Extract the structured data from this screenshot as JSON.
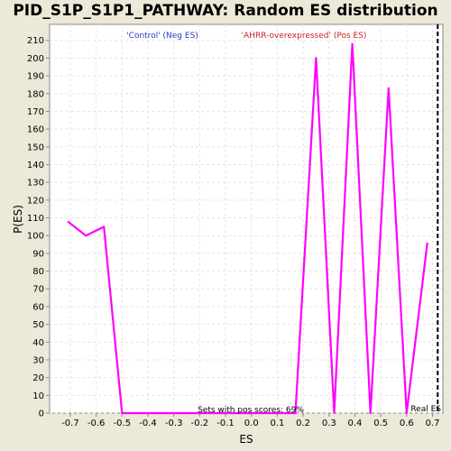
{
  "chart_data": {
    "type": "line",
    "title": "PID_S1P_S1P1_PATHWAY: Random ES distribution",
    "xlabel": "ES",
    "ylabel": "P(ES)",
    "xlim": [
      -0.78,
      0.74
    ],
    "ylim": [
      0,
      219
    ],
    "x_ticks": [
      -0.7,
      -0.6,
      -0.5,
      -0.4,
      -0.3,
      -0.2,
      -0.1,
      0.0,
      0.1,
      0.2,
      0.3,
      0.4,
      0.5,
      0.6,
      0.7
    ],
    "x_tick_labels": [
      "-0.7",
      "-0.6",
      "-0.5",
      "-0.4",
      "-0.3",
      "-0.2",
      "-0.1",
      "0.0",
      "0.1",
      "0.2",
      "0.3",
      "0.4",
      "0.5",
      "0.6",
      "0.7"
    ],
    "y_ticks": [
      0,
      10,
      20,
      30,
      40,
      50,
      60,
      70,
      80,
      90,
      100,
      110,
      120,
      130,
      140,
      150,
      160,
      170,
      180,
      190,
      200,
      210
    ],
    "y_tick_labels": [
      "0",
      "10",
      "20",
      "30",
      "40",
      "50",
      "60",
      "70",
      "80",
      "90",
      "100",
      "110",
      "120",
      "130",
      "140",
      "150",
      "160",
      "170",
      "180",
      "190",
      "200",
      "210"
    ],
    "grid": true,
    "series": [
      {
        "color": "#ff00ff",
        "x": [
          -0.71,
          -0.64,
          -0.57,
          -0.5,
          -0.43,
          -0.36,
          -0.29,
          -0.22,
          -0.15,
          -0.08,
          -0.01,
          0.06,
          0.13,
          0.17,
          0.25,
          0.32,
          0.39,
          0.46,
          0.53,
          0.6,
          0.68
        ],
        "y": [
          108,
          100,
          105,
          0,
          0,
          0,
          0,
          0,
          0,
          0,
          0,
          0,
          0,
          0,
          200,
          0,
          208,
          0,
          183,
          0,
          96
        ]
      }
    ],
    "real_es": {
      "x": 0.72,
      "label": "Real ES",
      "color": "#000000"
    },
    "annotations": {
      "neg_label": "'Control' (Neg ES)",
      "neg_color": "#3333cc",
      "pos_label": "'AHRR-overexpressed' (Pos ES)",
      "pos_color": "#cc2222",
      "pos_scores": "Sets with pos scores: 69%"
    }
  }
}
